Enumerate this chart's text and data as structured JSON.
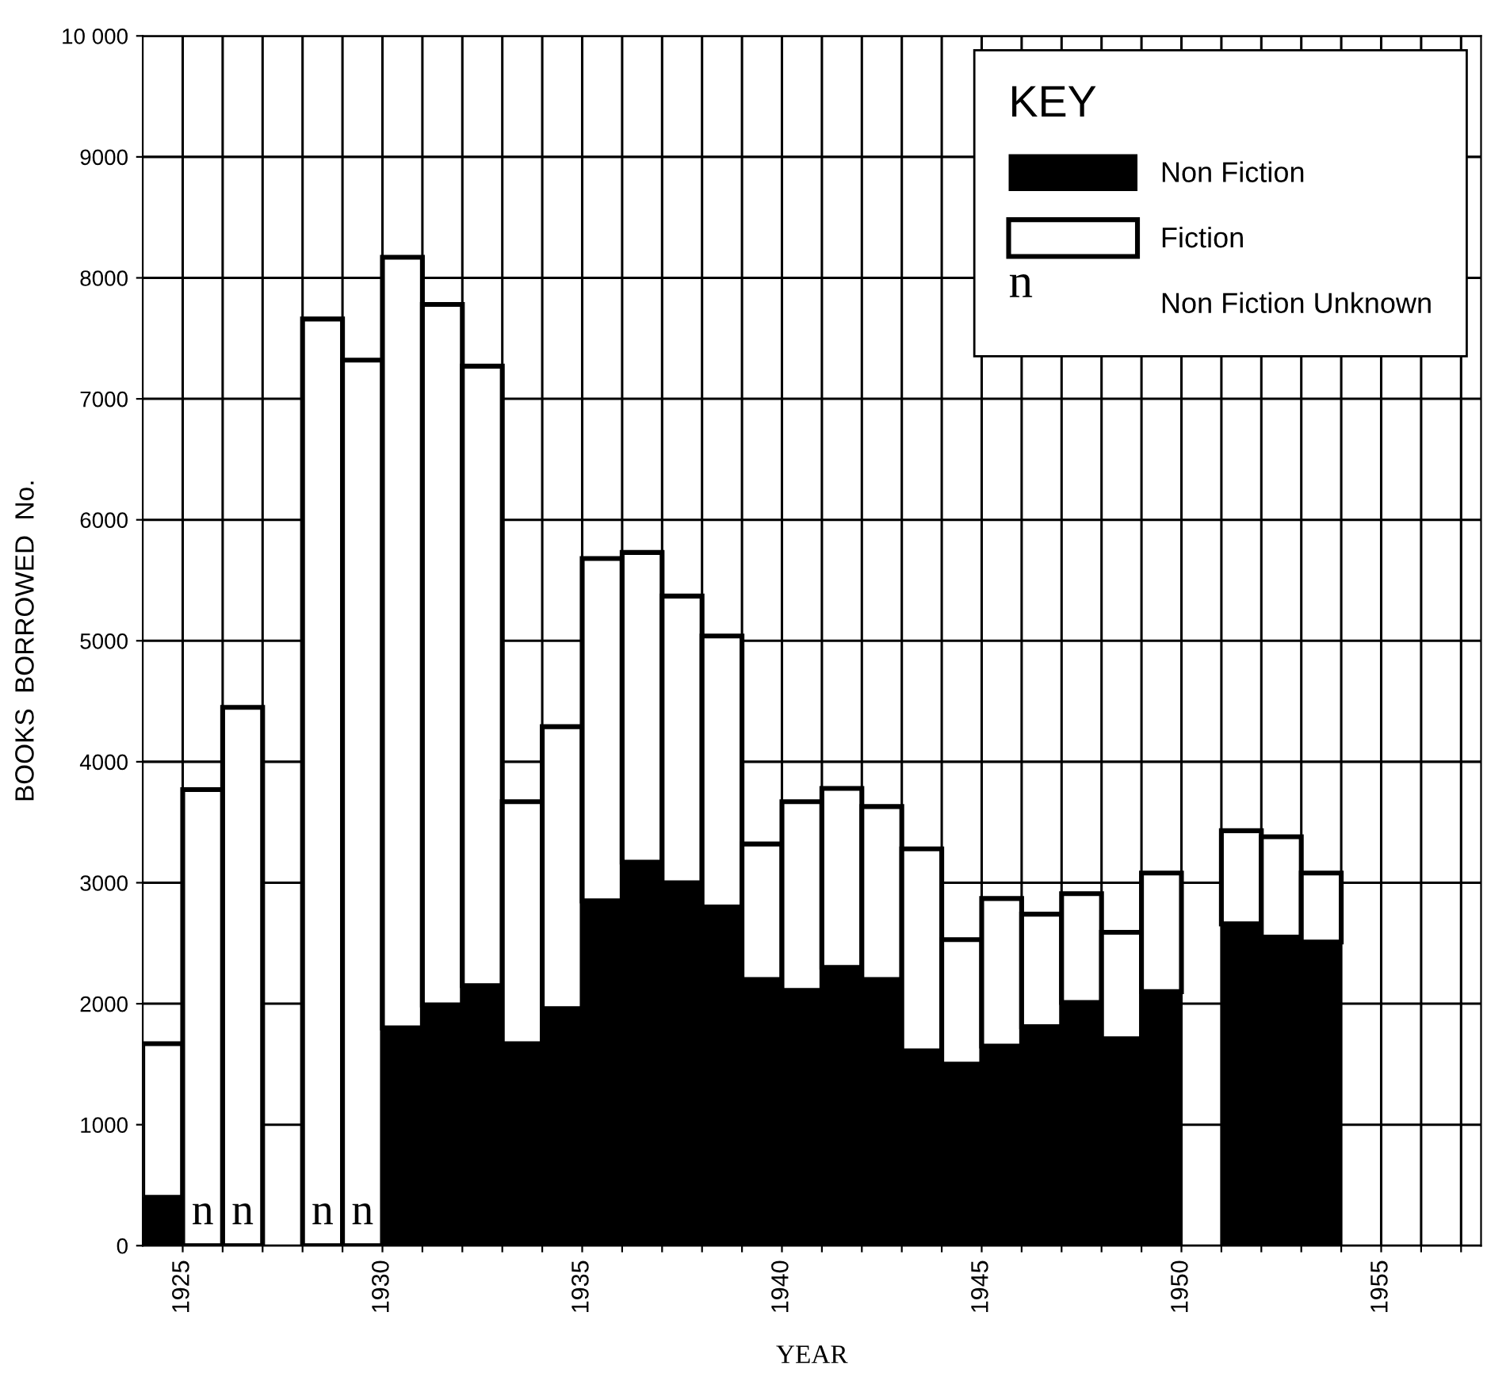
{
  "chart_data": {
    "type": "bar",
    "stacked": true,
    "xlabel": "YEAR",
    "ylabel": "BOOKS  BORROWED  No.",
    "legend_title": "KEY",
    "legend": "top right",
    "grid": true,
    "x": [
      1924.5,
      1925.5,
      1926.5,
      1927.5,
      1928.5,
      1929.5,
      1930.5,
      1931.5,
      1932.5,
      1933.5,
      1934.5,
      1935.5,
      1936.5,
      1937.5,
      1938.5,
      1939.5,
      1940.5,
      1941.5,
      1942.5,
      1943.5,
      1944.5,
      1945.5,
      1946.5,
      1947.5,
      1948.5,
      1949.5,
      1950.5,
      1951.5,
      1952.5,
      1953.5
    ],
    "series": [
      {
        "name": "Non Fiction",
        "color": "#000000",
        "values": [
          400,
          null,
          null,
          null,
          null,
          null,
          1800,
          1990,
          2150,
          1670,
          1960,
          2850,
          3170,
          3000,
          2800,
          2200,
          2110,
          2300,
          2200,
          1610,
          1500,
          1650,
          1810,
          2010,
          1710,
          2100,
          null,
          2660,
          2550,
          2510
        ]
      },
      {
        "name": "Fiction",
        "color": "#ffffff",
        "values": [
          1270,
          3770,
          4450,
          null,
          7660,
          7320,
          6370,
          5790,
          5120,
          2000,
          2330,
          2830,
          2560,
          2370,
          2240,
          1120,
          1560,
          1480,
          1430,
          1670,
          1030,
          1220,
          930,
          900,
          880,
          980,
          null,
          770,
          830,
          570
        ]
      }
    ],
    "annotations": [
      {
        "text": "n",
        "x": 1925.5,
        "y": 0
      },
      {
        "text": "n",
        "x": 1926.5,
        "y": 0
      },
      {
        "text": "n",
        "x": 1928.5,
        "y": 0
      },
      {
        "text": "n",
        "x": 1929.5,
        "y": 0
      },
      "Non Fiction Unknown"
    ],
    "xlim": [
      1924,
      1957.5
    ],
    "xticks": [
      {
        "value": 1925,
        "label": "1925"
      },
      {
        "value": 1926,
        "label": null
      },
      {
        "value": 1927,
        "label": null
      },
      {
        "value": 1928,
        "label": null
      },
      {
        "value": 1929,
        "label": null
      },
      {
        "value": 1930,
        "label": "1930"
      },
      {
        "value": 1931,
        "label": null
      },
      {
        "value": 1932,
        "label": null
      },
      {
        "value": 1933,
        "label": null
      },
      {
        "value": 1934,
        "label": null
      },
      {
        "value": 1935,
        "label": "1935"
      },
      {
        "value": 1936,
        "label": null
      },
      {
        "value": 1937,
        "label": null
      },
      {
        "value": 1938,
        "label": null
      },
      {
        "value": 1939,
        "label": null
      },
      {
        "value": 1940,
        "label": "1940"
      },
      {
        "value": 1941,
        "label": null
      },
      {
        "value": 1942,
        "label": null
      },
      {
        "value": 1943,
        "label": null
      },
      {
        "value": 1944,
        "label": null
      },
      {
        "value": 1945,
        "label": "1945"
      },
      {
        "value": 1946,
        "label": null
      },
      {
        "value": 1947,
        "label": null
      },
      {
        "value": 1948,
        "label": null
      },
      {
        "value": 1949,
        "label": null
      },
      {
        "value": 1950,
        "label": "1950"
      },
      {
        "value": 1951,
        "label": null
      },
      {
        "value": 1952,
        "label": null
      },
      {
        "value": 1953,
        "label": null
      },
      {
        "value": 1954,
        "label": null
      },
      {
        "value": 1955,
        "label": "1955"
      },
      {
        "value": 1956,
        "label": null
      },
      {
        "value": 1957,
        "label": null
      }
    ],
    "ylim": [
      0,
      10000
    ],
    "yticks": [
      0,
      1000,
      2000,
      3000,
      4000,
      5000,
      6000,
      7000,
      8000,
      9000,
      {
        "value": 10000,
        "label": "10 000"
      }
    ]
  }
}
